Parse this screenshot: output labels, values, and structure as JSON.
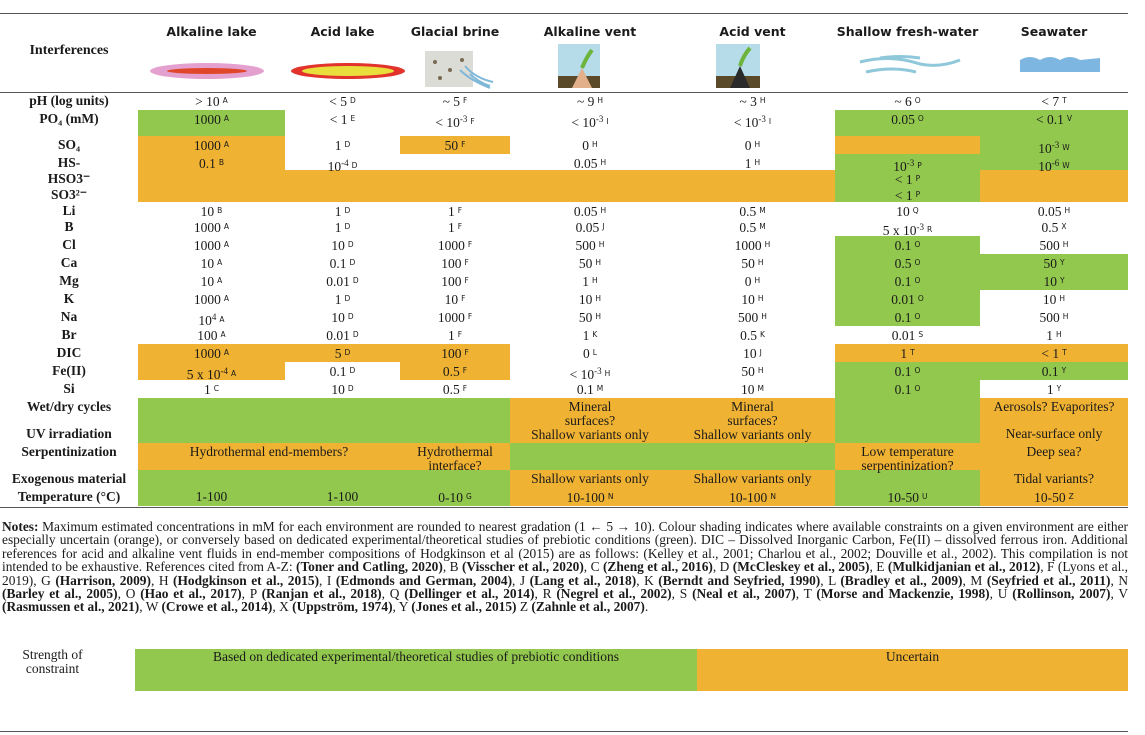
{
  "colors": {
    "green": "#92c84e",
    "orange": "#f0b232"
  },
  "header": {
    "corner": "Interferences",
    "columns": [
      "Alkaline lake",
      "Acid lake",
      "Glacial brine",
      "Alkaline vent",
      "Acid vent",
      "Shallow fresh-water",
      "Seawater"
    ]
  },
  "table": {
    "rows": [
      {
        "label": "pH (log units)",
        "cells": [
          {
            "text": "> 10",
            "ref": "A"
          },
          {
            "text": "< 5",
            "ref": "D"
          },
          {
            "text": "~ 5",
            "ref": "F"
          },
          {
            "text": "~ 9",
            "ref": "H"
          },
          {
            "text": "~ 3",
            "ref": "H"
          },
          {
            "text": "~ 6",
            "ref": "O"
          },
          {
            "text": "< 7",
            "ref": "T"
          }
        ]
      },
      {
        "label": "PO₄ (mM)",
        "cells": [
          {
            "text": "1000",
            "ref": "A",
            "shade": "green"
          },
          {
            "text": "< 1",
            "ref": "E"
          },
          {
            "text": "< 10",
            "exp": "-3",
            "ref": "F"
          },
          {
            "text": "< 10",
            "exp": "-3",
            "ref": "I"
          },
          {
            "text": "< 10",
            "exp": "-3",
            "ref": "I"
          },
          {
            "text": "0.05",
            "ref": "O",
            "shade": "green"
          },
          {
            "text": "< 0.1",
            "ref": "V",
            "shade": "green"
          }
        ]
      },
      {
        "label": "SO₄",
        "cells": [
          {
            "text": "1000",
            "ref": "A",
            "shade": "orange"
          },
          {
            "text": "1",
            "ref": "D"
          },
          {
            "text": "50",
            "ref": "F",
            "shade": "orange"
          },
          {
            "text": "0",
            "ref": "H"
          },
          {
            "text": "0",
            "ref": "H"
          },
          {
            "shade": "orange"
          },
          {
            "text": "10",
            "exp": "-3",
            "ref": "W",
            "shade": "green"
          }
        ]
      },
      {
        "label": "HS-",
        "cells": [
          {
            "text": "0.1",
            "ref": "B",
            "shade": "orange"
          },
          {
            "text": "10",
            "exp": "-4",
            "ref": "D"
          },
          null,
          {
            "text": "0.05",
            "ref": "H"
          },
          {
            "text": "1",
            "ref": "H"
          },
          {
            "text": "10",
            "exp": "-3",
            "ref": "P",
            "shade": "green"
          },
          {
            "text": "10",
            "exp": "-6",
            "ref": "W",
            "shade": "green"
          }
        ]
      },
      {
        "label": "HSO3⁻",
        "cells": [
          {
            "shade": "orange"
          },
          {
            "shade": "orange"
          },
          {
            "shade": "orange"
          },
          {
            "shade": "orange"
          },
          {
            "shade": "orange"
          },
          {
            "text": "< 1",
            "ref": "P",
            "shade": "green"
          },
          {
            "shade": "orange"
          }
        ]
      },
      {
        "label": "SO3²⁻",
        "cells": [
          {
            "shade": "orange"
          },
          {
            "shade": "orange"
          },
          {
            "shade": "orange"
          },
          {
            "shade": "orange"
          },
          {
            "shade": "orange"
          },
          {
            "text": "< 1",
            "ref": "P",
            "shade": "green"
          },
          {
            "shade": "orange"
          }
        ]
      },
      {
        "label": "Li",
        "cells": [
          {
            "text": "10",
            "ref": "B"
          },
          {
            "text": "1",
            "ref": "D"
          },
          {
            "text": "1",
            "ref": "F"
          },
          {
            "text": "0.05",
            "ref": "H"
          },
          {
            "text": "0.5",
            "ref": "M"
          },
          {
            "text": "10",
            "ref": "Q"
          },
          {
            "text": "0.05",
            "ref": "H"
          }
        ]
      },
      {
        "label": "B",
        "cells": [
          {
            "text": "1000",
            "ref": "A"
          },
          {
            "text": "1",
            "ref": "D"
          },
          {
            "text": "1",
            "ref": "F"
          },
          {
            "text": "0.05",
            "ref": "J"
          },
          {
            "text": "0.5",
            "ref": "M"
          },
          {
            "text": "5 x 10",
            "exp": "-3",
            "ref": "R"
          },
          {
            "text": "0.5",
            "ref": "X"
          }
        ]
      },
      {
        "label": "Cl",
        "cells": [
          {
            "text": "1000",
            "ref": "A"
          },
          {
            "text": "10",
            "ref": "D"
          },
          {
            "text": "1000",
            "ref": "F"
          },
          {
            "text": "500",
            "ref": "H"
          },
          {
            "text": "1000",
            "ref": "H"
          },
          {
            "text": "0.1",
            "ref": "O",
            "shade": "green"
          },
          {
            "text": "500",
            "ref": "H"
          }
        ]
      },
      {
        "label": "Ca",
        "cells": [
          {
            "text": "10",
            "ref": "A"
          },
          {
            "text": "0.1",
            "ref": "D"
          },
          {
            "text": "100",
            "ref": "F"
          },
          {
            "text": "50",
            "ref": "H"
          },
          {
            "text": "50",
            "ref": "H"
          },
          {
            "text": "0.5",
            "ref": "O",
            "shade": "green"
          },
          {
            "text": "50",
            "ref": "Y",
            "shade": "green"
          }
        ]
      },
      {
        "label": "Mg",
        "cells": [
          {
            "text": "10",
            "ref": "A"
          },
          {
            "text": "0.01",
            "ref": "D"
          },
          {
            "text": "100",
            "ref": "F"
          },
          {
            "text": "1",
            "ref": "H"
          },
          {
            "text": "0",
            "ref": "H"
          },
          {
            "text": "0.1",
            "ref": "O",
            "shade": "green"
          },
          {
            "text": "10",
            "ref": "Y",
            "shade": "green"
          }
        ]
      },
      {
        "label": "K",
        "cells": [
          {
            "text": "1000",
            "ref": "A"
          },
          {
            "text": "1",
            "ref": "D"
          },
          {
            "text": "10",
            "ref": "F"
          },
          {
            "text": "10",
            "ref": "H"
          },
          {
            "text": "10",
            "ref": "H"
          },
          {
            "text": "0.01",
            "ref": "O",
            "shade": "green"
          },
          {
            "text": "10",
            "ref": "H"
          }
        ]
      },
      {
        "label": "Na",
        "cells": [
          {
            "text": "10",
            "exp": "4",
            "ref": "A"
          },
          {
            "text": "10",
            "ref": "D"
          },
          {
            "text": "1000",
            "ref": "F"
          },
          {
            "text": "50",
            "ref": "H"
          },
          {
            "text": "500",
            "ref": "H"
          },
          {
            "text": "0.1",
            "ref": "O",
            "shade": "green"
          },
          {
            "text": "500",
            "ref": "H"
          }
        ]
      },
      {
        "label": "Br",
        "cells": [
          {
            "text": "100",
            "ref": "A"
          },
          {
            "text": "0.01",
            "ref": "D"
          },
          {
            "text": "1",
            "ref": "F"
          },
          {
            "text": "1",
            "ref": "K"
          },
          {
            "text": "0.5",
            "ref": "K"
          },
          {
            "text": "0.01",
            "ref": "S"
          },
          {
            "text": "1",
            "ref": "H"
          }
        ]
      },
      {
        "label": "DIC",
        "cells": [
          {
            "text": "1000",
            "ref": "A",
            "shade": "orange"
          },
          {
            "text": "5",
            "ref": "D",
            "shade": "orange"
          },
          {
            "text": "100",
            "ref": "F",
            "shade": "orange"
          },
          {
            "text": "0",
            "ref": "L"
          },
          {
            "text": "10",
            "ref": "J"
          },
          {
            "text": "1",
            "ref": "T",
            "shade": "orange"
          },
          {
            "text": "< 1",
            "ref": "T",
            "shade": "orange"
          }
        ]
      },
      {
        "label": "Fe(II)",
        "cells": [
          {
            "text": "5 x 10",
            "exp": "-4",
            "ref": "A",
            "shade": "orange"
          },
          {
            "text": "0.1",
            "ref": "D"
          },
          {
            "text": "0.5",
            "ref": "F",
            "shade": "orange"
          },
          {
            "text": "< 10",
            "exp": "-3",
            "ref": "H"
          },
          {
            "text": "50",
            "ref": "H"
          },
          {
            "text": "0.1",
            "ref": "O",
            "shade": "green"
          },
          {
            "text": "0.1",
            "ref": "Y",
            "shade": "green"
          }
        ]
      },
      {
        "label": "Si",
        "cells": [
          {
            "text": "1",
            "ref": "C"
          },
          {
            "text": "10",
            "ref": "D"
          },
          {
            "text": "0.5",
            "ref": "F"
          },
          {
            "text": "0.1",
            "ref": "M"
          },
          {
            "text": "10",
            "ref": "M"
          },
          {
            "text": "0.1",
            "ref": "O",
            "shade": "green"
          },
          {
            "text": "1",
            "ref": "Y"
          }
        ]
      },
      {
        "label": "Wet/dry cycles",
        "cells": [
          {
            "shade": "green"
          },
          {
            "shade": "green"
          },
          {
            "shade": "green"
          },
          {
            "text": "Mineral\nsurfaces?\nShallow variants only",
            "shade": "orange"
          },
          {
            "text": "Mineral\nsurfaces?\nShallow variants only",
            "shade": "orange"
          },
          {
            "shade": "green"
          },
          {
            "text": "Aerosols? Evaporites?",
            "shade": "orange"
          }
        ]
      },
      {
        "label": "UV irradiation",
        "cells": [
          {
            "shade": "green"
          },
          {
            "shade": "green"
          },
          {
            "shade": "green"
          },
          {
            "shade": "orange"
          },
          {
            "shade": "orange"
          },
          {
            "shade": "green"
          },
          {
            "text": "Near-surface only",
            "shade": "orange"
          }
        ]
      },
      {
        "label": "Serpentinization",
        "cells": [
          {
            "text": "Hydrothermal end-members?",
            "shade": "orange"
          },
          {
            "shade": "orange"
          },
          {
            "text": "Hydrothermal\ninterface?",
            "shade": "orange"
          },
          {
            "shade": "green"
          },
          {
            "shade": "green"
          },
          {
            "text": "Low temperature\nserpentinization?",
            "shade": "orange"
          },
          {
            "text": "Deep sea?",
            "shade": "orange"
          }
        ]
      },
      {
        "label": "Exogenous material",
        "cells": [
          {
            "shade": "green"
          },
          {
            "shade": "green"
          },
          {
            "shade": "green"
          },
          {
            "text": "Shallow variants only",
            "shade": "orange"
          },
          {
            "text": "Shallow variants only",
            "shade": "orange"
          },
          {
            "shade": "green"
          },
          {
            "text": "Tidal variants?",
            "shade": "orange"
          }
        ]
      },
      {
        "label": "Temperature (°C)",
        "cells": [
          {
            "text": "1-100",
            "shade": "green"
          },
          {
            "text": "1-100",
            "shade": "green"
          },
          {
            "text": "0-10",
            "ref": "G",
            "shade": "green"
          },
          {
            "text": "10-100",
            "ref": "N",
            "shade": "orange"
          },
          {
            "text": "10-100",
            "ref": "N",
            "shade": "orange"
          },
          {
            "text": "10-50",
            "ref": "U",
            "shade": "green"
          },
          {
            "text": "10-50",
            "ref": "Z",
            "shade": "orange"
          }
        ]
      }
    ]
  },
  "notes": [
    {
      "text": "Notes:",
      "bold": true
    },
    {
      "text": " Maximum estimated concentrations in mM for each environment are rounded to nearest gradation (1 ← 5 → 10). Colour shading indicates where available constraints on a given environment are either especially uncertain (orange), or conversely based on dedicated experimental/theoretical studies of prebiotic conditions (green). DIC – Dissolved Inorganic Carbon, Fe(II) – dissolved ferrous iron. Additional references for acid and alkaline vent fluids in end-member compositions of Hodgkinson et al (2015) are as follows: (Kelley et al., 2001; Charlou et al., 2002; Douville et al., 2002). This compilation is not intended to be exhaustive. References cited from A-Z: "
    },
    {
      "text": "(Toner and Catling, 2020)",
      "bold": true
    },
    {
      "text": ", B "
    },
    {
      "text": "(Visscher et al., 2020)",
      "bold": true
    },
    {
      "text": ", C "
    },
    {
      "text": "(Zheng et al., 2016)",
      "bold": true
    },
    {
      "text": ", D "
    },
    {
      "text": "(McCleskey et al., 2005)",
      "bold": true
    },
    {
      "text": ", E "
    },
    {
      "text": "(Mulkidjanian et al., 2012)",
      "bold": true
    },
    {
      "text": ", F (Lyons et al., 2019), G "
    },
    {
      "text": "(Harrison, 2009)",
      "bold": true
    },
    {
      "text": ", H "
    },
    {
      "text": "(Hodgkinson et al., 2015)",
      "bold": true
    },
    {
      "text": ", I "
    },
    {
      "text": "(Edmonds and German, 2004)",
      "bold": true
    },
    {
      "text": ", J "
    },
    {
      "text": "(Lang et al., 2018)",
      "bold": true
    },
    {
      "text": ", K "
    },
    {
      "text": "(Berndt and Seyfried, 1990)",
      "bold": true
    },
    {
      "text": ", L "
    },
    {
      "text": "(Bradley et al., 2009)",
      "bold": true
    },
    {
      "text": ", M "
    },
    {
      "text": "(Seyfried et al., 2011)",
      "bold": true
    },
    {
      "text": ", N "
    },
    {
      "text": "(Barley et al., 2005)",
      "bold": true
    },
    {
      "text": ", O "
    },
    {
      "text": "(Hao et al., 2017)",
      "bold": true
    },
    {
      "text": ", P "
    },
    {
      "text": "(Ranjan et al., 2018)",
      "bold": true
    },
    {
      "text": ", Q "
    },
    {
      "text": "(Dellinger et al., 2014)",
      "bold": true
    },
    {
      "text": ", R "
    },
    {
      "text": "(Negrel et al., 2002)",
      "bold": true
    },
    {
      "text": ", S "
    },
    {
      "text": "(Neal et al., 2007)",
      "bold": true
    },
    {
      "text": ", T "
    },
    {
      "text": "(Morse and Mackenzie, 1998)",
      "bold": true
    },
    {
      "text": ", U "
    },
    {
      "text": "(Rollinson, 2007)",
      "bold": true
    },
    {
      "text": ", V "
    },
    {
      "text": "(Rasmussen et al., 2021)",
      "bold": true
    },
    {
      "text": ", W "
    },
    {
      "text": "(Crowe et al., 2014)",
      "bold": true
    },
    {
      "text": ", X "
    },
    {
      "text": "(Uppström, 1974)",
      "bold": true
    },
    {
      "text": ", Y "
    },
    {
      "text": "(Jones et al., 2015)",
      "bold": true
    },
    {
      "text": " Z "
    },
    {
      "text": "(Zahnle et al., 2007)",
      "bold": true
    },
    {
      "text": "."
    }
  ],
  "legend": {
    "title": "Strength of constraint",
    "green": "Based on dedicated experimental/theoretical studies of prebiotic conditions",
    "orange": "Uncertain"
  }
}
